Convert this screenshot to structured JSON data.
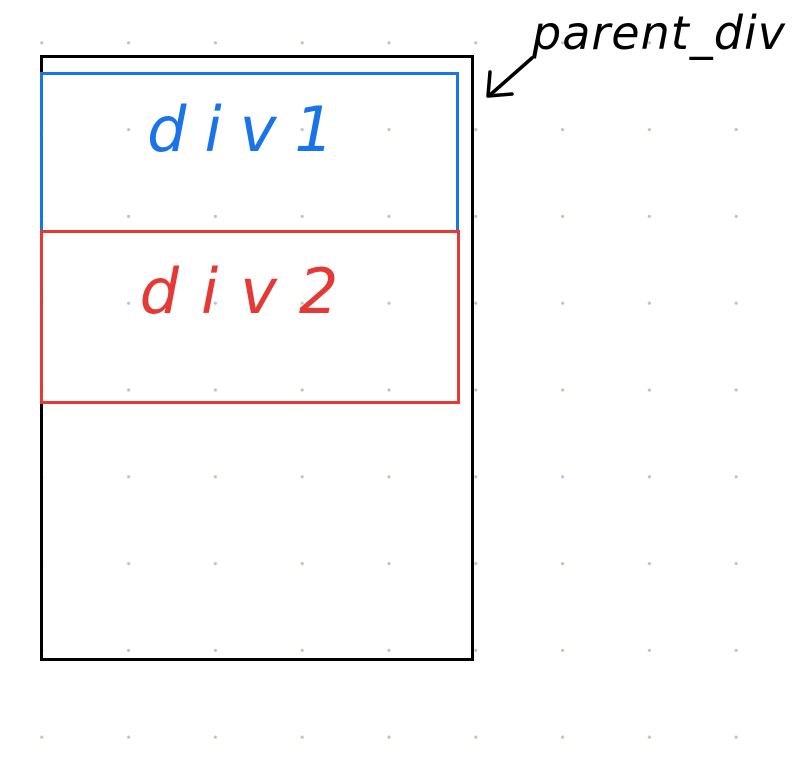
{
  "diagram": {
    "parent_label": "parent_div",
    "child_1_label": "div1",
    "child_2_label": "div2",
    "colors": {
      "parent_border": "#000000",
      "div1_border": "#1a73e8",
      "div2_border": "#e53935",
      "grid_dot": "#b3c3da"
    }
  }
}
